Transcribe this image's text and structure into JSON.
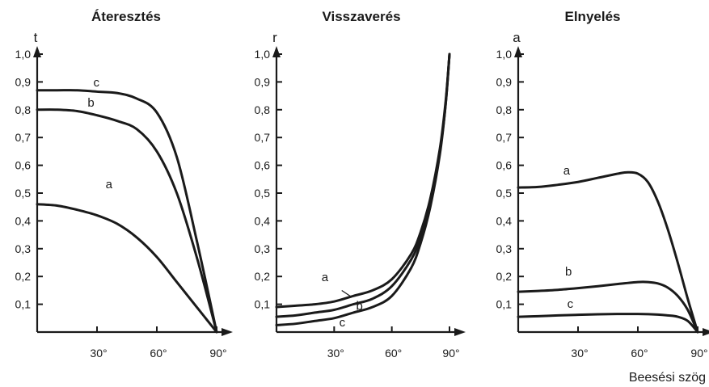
{
  "chart_data": [
    {
      "type": "line",
      "title": "Áteresztés",
      "ylabel": "t",
      "xlim": [
        0,
        90
      ],
      "ylim": [
        0,
        1.0
      ],
      "x_ticks": [
        30,
        60,
        90
      ],
      "x_tick_labels": [
        "30°",
        "60°",
        "90°"
      ],
      "y_ticks": [
        0.1,
        0.2,
        0.3,
        0.4,
        0.5,
        0.6,
        0.7,
        0.8,
        0.9,
        1.0
      ],
      "y_tick_labels": [
        "0,1",
        "0,2",
        "0,3",
        "0,4",
        "0,5",
        "0,6",
        "0,7",
        "0,8",
        "0,9",
        "1,0"
      ],
      "series": [
        {
          "name": "a",
          "x": [
            0,
            10,
            20,
            30,
            40,
            50,
            60,
            70,
            80,
            90
          ],
          "values": [
            0.46,
            0.455,
            0.44,
            0.42,
            0.39,
            0.34,
            0.27,
            0.18,
            0.09,
            0.0
          ]
        },
        {
          "name": "b",
          "x": [
            0,
            10,
            20,
            30,
            40,
            50,
            60,
            70,
            80,
            90
          ],
          "values": [
            0.8,
            0.8,
            0.795,
            0.78,
            0.76,
            0.73,
            0.65,
            0.5,
            0.27,
            0.0
          ]
        },
        {
          "name": "c",
          "x": [
            0,
            10,
            20,
            30,
            40,
            50,
            60,
            70,
            80,
            90
          ],
          "values": [
            0.87,
            0.87,
            0.87,
            0.865,
            0.86,
            0.84,
            0.79,
            0.63,
            0.33,
            0.0
          ]
        }
      ]
    },
    {
      "type": "line",
      "title": "Visszaverés",
      "ylabel": "r",
      "xlim": [
        0,
        90
      ],
      "ylim": [
        0,
        1.0
      ],
      "x_ticks": [
        30,
        60,
        90
      ],
      "x_tick_labels": [
        "30°",
        "60°",
        "90°"
      ],
      "y_ticks": [
        0.1,
        0.2,
        0.3,
        0.4,
        0.5,
        0.6,
        0.7,
        0.8,
        0.9,
        1.0
      ],
      "y_tick_labels": [
        "0,1",
        "0,2",
        "0,3",
        "0,4",
        "0,5",
        "0,6",
        "0,7",
        "0,8",
        "0,9",
        "1,0"
      ],
      "series": [
        {
          "name": "a",
          "x": [
            0,
            10,
            20,
            30,
            40,
            50,
            60,
            70,
            75,
            80,
            85,
            88,
            90
          ],
          "values": [
            0.09,
            0.095,
            0.1,
            0.11,
            0.13,
            0.15,
            0.19,
            0.28,
            0.36,
            0.48,
            0.66,
            0.83,
            1.0
          ]
        },
        {
          "name": "b",
          "x": [
            0,
            10,
            20,
            30,
            40,
            50,
            60,
            70,
            75,
            80,
            85,
            88,
            90
          ],
          "values": [
            0.055,
            0.06,
            0.07,
            0.08,
            0.1,
            0.12,
            0.165,
            0.26,
            0.34,
            0.46,
            0.65,
            0.82,
            1.0
          ]
        },
        {
          "name": "c",
          "x": [
            0,
            10,
            20,
            30,
            40,
            50,
            60,
            70,
            75,
            80,
            85,
            88,
            90
          ],
          "values": [
            0.025,
            0.03,
            0.04,
            0.05,
            0.07,
            0.09,
            0.13,
            0.23,
            0.32,
            0.45,
            0.64,
            0.82,
            1.0
          ]
        }
      ]
    },
    {
      "type": "line",
      "title": "Elnyelés",
      "ylabel": "a",
      "xlabel": "Beesési szög",
      "xlim": [
        0,
        90
      ],
      "ylim": [
        0,
        1.0
      ],
      "x_ticks": [
        30,
        60,
        90
      ],
      "x_tick_labels": [
        "30°",
        "60°",
        "90°"
      ],
      "y_ticks": [
        0.1,
        0.2,
        0.3,
        0.4,
        0.5,
        0.6,
        0.7,
        0.8,
        0.9,
        1.0
      ],
      "y_tick_labels": [
        "0,1",
        "0,2",
        "0,3",
        "0,4",
        "0,5",
        "0,6",
        "0,7",
        "0,8",
        "0,9",
        "1,0"
      ],
      "series": [
        {
          "name": "a",
          "x": [
            0,
            10,
            20,
            30,
            40,
            50,
            55,
            60,
            65,
            70,
            75,
            80,
            85,
            90
          ],
          "values": [
            0.52,
            0.522,
            0.53,
            0.54,
            0.555,
            0.57,
            0.575,
            0.57,
            0.54,
            0.47,
            0.37,
            0.25,
            0.12,
            0.0
          ]
        },
        {
          "name": "b",
          "x": [
            0,
            10,
            20,
            30,
            40,
            50,
            60,
            65,
            70,
            75,
            80,
            85,
            90
          ],
          "values": [
            0.145,
            0.148,
            0.152,
            0.158,
            0.165,
            0.173,
            0.18,
            0.18,
            0.175,
            0.16,
            0.13,
            0.08,
            0.0
          ]
        },
        {
          "name": "c",
          "x": [
            0,
            10,
            20,
            30,
            40,
            50,
            60,
            70,
            75,
            80,
            85,
            90
          ],
          "values": [
            0.055,
            0.057,
            0.06,
            0.062,
            0.064,
            0.065,
            0.065,
            0.063,
            0.06,
            0.055,
            0.04,
            0.0
          ]
        }
      ]
    }
  ],
  "footer": {
    "xlabel": "Beesési szög"
  }
}
